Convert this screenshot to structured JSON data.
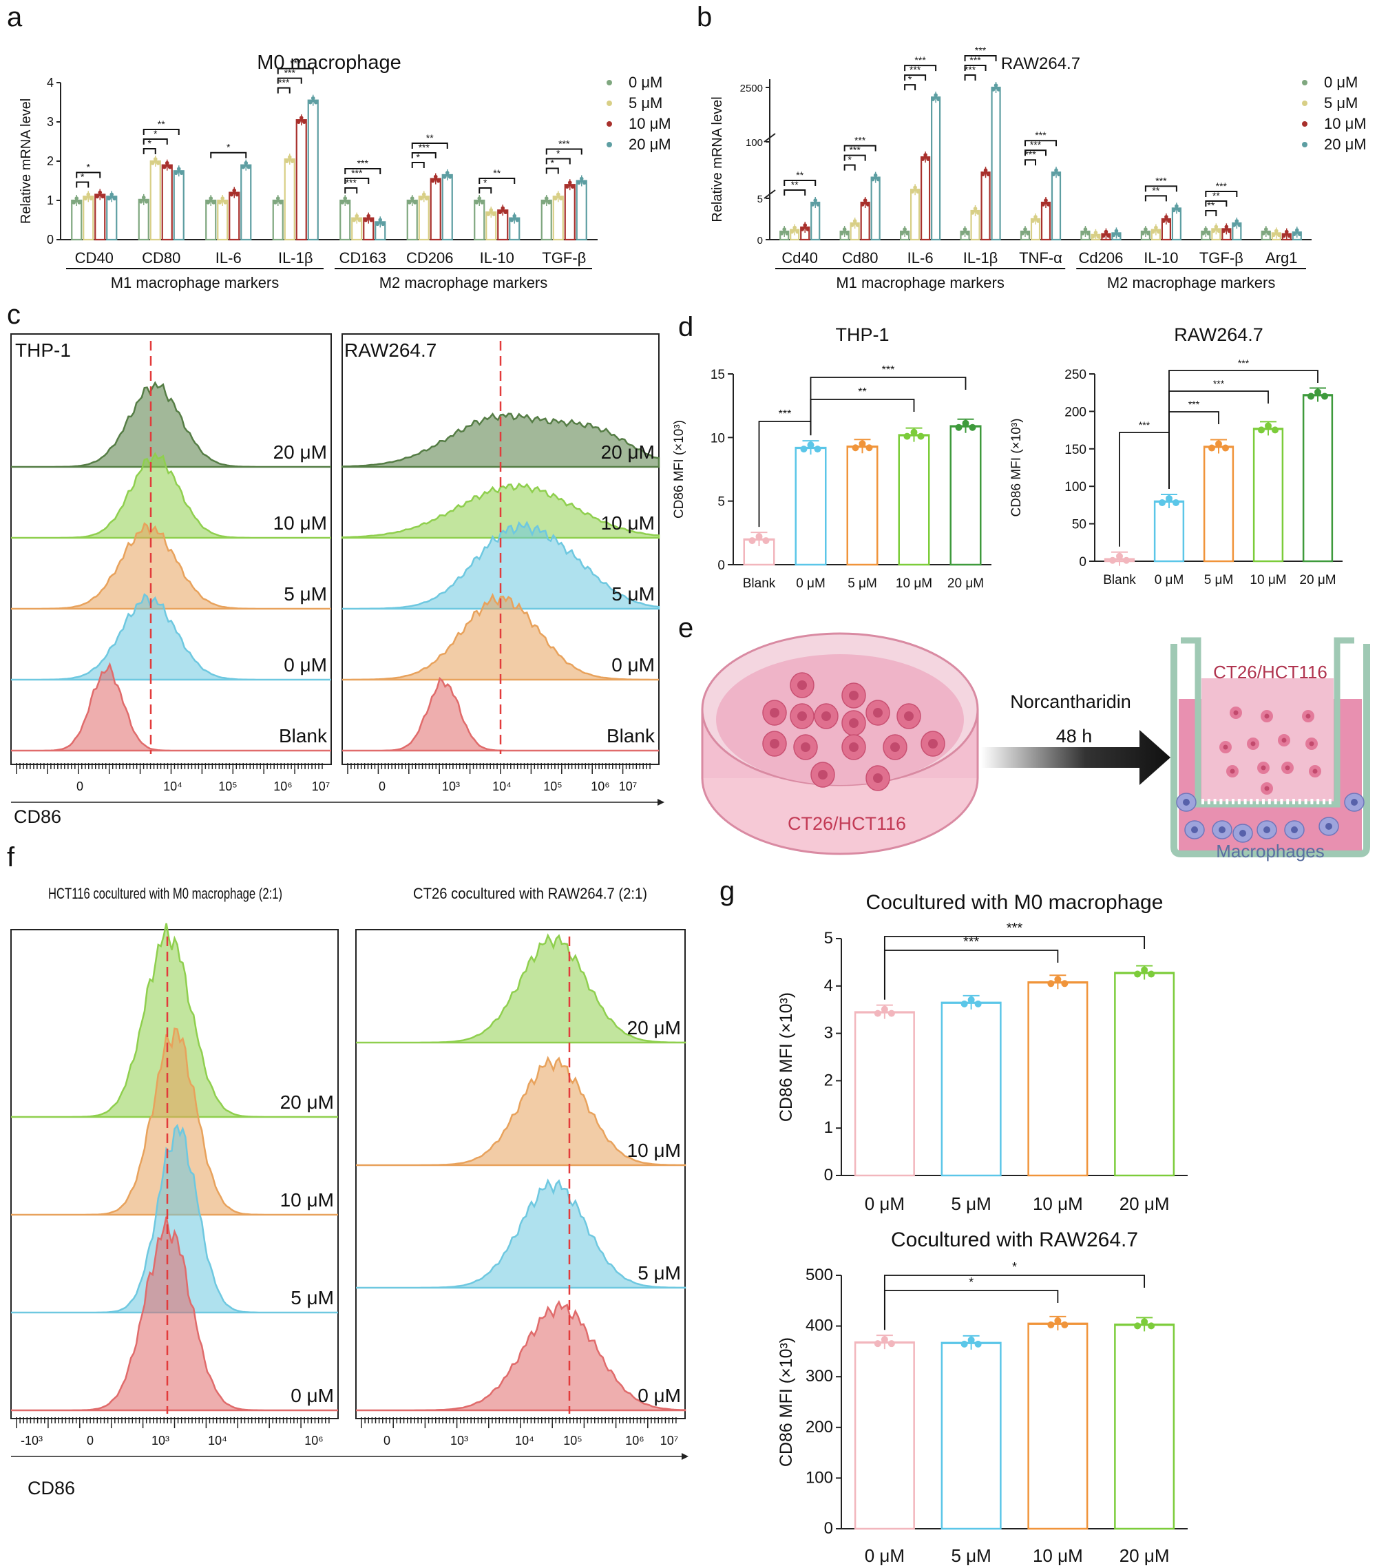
{
  "colors": {
    "c0": "#7fa77f",
    "c5": "#d8cf86",
    "c10": "#a8302c",
    "c20": "#5d9ea2",
    "blank": "#e06b6b",
    "zero": "#6ec8e0",
    "five": "#e8a25c",
    "ten": "#8fcf4e",
    "twenty": "#557d45",
    "barBlank": "#f2b6bd",
    "bar0": "#5bc6e8",
    "bar5": "#f0943a",
    "bar10": "#7ccc3a",
    "bar20": "#3e9a3c"
  },
  "panel_letters": [
    "a",
    "b",
    "c",
    "d",
    "e",
    "f",
    "g"
  ],
  "chart_data": [
    {
      "id": "a",
      "type": "bar",
      "title": "M0 macrophage",
      "ylabel": "Relative mRNA level",
      "ylim": [
        0,
        4
      ],
      "yticks": [
        "0",
        "1",
        "2",
        "3",
        "4"
      ],
      "categories": [
        "CD40",
        "CD80",
        "IL-6",
        "IL-1β",
        "CD163",
        "CD206",
        "IL-10",
        "TGF-β"
      ],
      "groups": [
        {
          "label": "M1 macrophage markers",
          "span": [
            0,
            3
          ]
        },
        {
          "label": "M2 macrophage markers",
          "span": [
            4,
            7
          ]
        }
      ],
      "legend": [
        "0 μM",
        "5 μM",
        "10 μM",
        "20 μM"
      ],
      "legend_position": "right",
      "series": [
        {
          "name": "0 μM",
          "values": [
            1.0,
            1.02,
            1.0,
            1.0,
            1.0,
            1.0,
            1.0,
            1.0
          ]
        },
        {
          "name": "5 μM",
          "values": [
            1.1,
            2.0,
            1.0,
            2.05,
            0.55,
            1.1,
            0.7,
            1.1
          ]
        },
        {
          "name": "10 μM",
          "values": [
            1.15,
            1.9,
            1.2,
            3.05,
            0.55,
            1.55,
            0.75,
            1.4
          ]
        },
        {
          "name": "20 μM",
          "values": [
            1.1,
            1.75,
            1.9,
            3.55,
            0.45,
            1.65,
            0.55,
            1.5
          ]
        }
      ],
      "significance": [
        {
          "cat": 0,
          "from": 0,
          "to": 1,
          "label": "*"
        },
        {
          "cat": 0,
          "from": 0,
          "to": 2,
          "label": "*"
        },
        {
          "cat": 1,
          "from": 0,
          "to": 1,
          "label": "*"
        },
        {
          "cat": 1,
          "from": 0,
          "to": 2,
          "label": "*"
        },
        {
          "cat": 1,
          "from": 0,
          "to": 3,
          "label": "**"
        },
        {
          "cat": 2,
          "from": 0,
          "to": 3,
          "label": "*"
        },
        {
          "cat": 3,
          "from": 0,
          "to": 1,
          "label": "***"
        },
        {
          "cat": 3,
          "from": 0,
          "to": 2,
          "label": "***"
        },
        {
          "cat": 3,
          "from": 0,
          "to": 3,
          "label": "***"
        },
        {
          "cat": 4,
          "from": 0,
          "to": 1,
          "label": "***"
        },
        {
          "cat": 4,
          "from": 0,
          "to": 2,
          "label": "***"
        },
        {
          "cat": 4,
          "from": 0,
          "to": 3,
          "label": "***"
        },
        {
          "cat": 5,
          "from": 0,
          "to": 1,
          "label": "*"
        },
        {
          "cat": 5,
          "from": 0,
          "to": 2,
          "label": "***"
        },
        {
          "cat": 5,
          "from": 0,
          "to": 3,
          "label": "**"
        },
        {
          "cat": 6,
          "from": 0,
          "to": 1,
          "label": "*"
        },
        {
          "cat": 6,
          "from": 0,
          "to": 3,
          "label": "**"
        },
        {
          "cat": 7,
          "from": 0,
          "to": 1,
          "label": "*"
        },
        {
          "cat": 7,
          "from": 0,
          "to": 2,
          "label": "*"
        },
        {
          "cat": 7,
          "from": 0,
          "to": 3,
          "label": "***"
        }
      ]
    },
    {
      "id": "b",
      "type": "bar",
      "title": "RAW264.7",
      "ylabel": "Relative mRNA level",
      "yticks": [
        "0",
        "5",
        "100",
        "2500"
      ],
      "broken_axis": true,
      "categories": [
        "Cd40",
        "Cd80",
        "IL-6",
        "IL-1β",
        "TNF-α",
        "Cd206",
        "IL-10",
        "TGF-β",
        "Arg1"
      ],
      "groups": [
        {
          "label": "M1 macrophage markers",
          "span": [
            0,
            4
          ]
        },
        {
          "label": "M2 macrophage markers",
          "span": [
            5,
            8
          ]
        }
      ],
      "legend": [
        "0 μM",
        "5 μM",
        "10 μM",
        "20 μM"
      ],
      "legend_position": "right",
      "series": [
        {
          "name": "0 μM",
          "values": [
            1,
            1,
            1,
            1,
            1,
            1,
            1,
            1,
            1
          ]
        },
        {
          "name": "5 μM",
          "values": [
            1.2,
            2,
            6,
            3.5,
            2.5,
            0.6,
            1.2,
            1.3,
            0.8
          ]
        },
        {
          "name": "10 μM",
          "values": [
            1.5,
            4.5,
            70,
            40,
            4.5,
            0.7,
            2.5,
            1.3,
            0.7
          ]
        },
        {
          "name": "20 μM",
          "values": [
            4.5,
            30,
            2000,
            2500,
            40,
            0.8,
            3.8,
            2.0,
            0.9
          ]
        }
      ],
      "significance": [
        {
          "cat": 0,
          "from": 0,
          "to": 2,
          "label": "**"
        },
        {
          "cat": 0,
          "from": 0,
          "to": 3,
          "label": "**"
        },
        {
          "cat": 1,
          "from": 0,
          "to": 1,
          "label": "*"
        },
        {
          "cat": 1,
          "from": 0,
          "to": 2,
          "label": "***"
        },
        {
          "cat": 1,
          "from": 0,
          "to": 3,
          "label": "***"
        },
        {
          "cat": 2,
          "from": 0,
          "to": 1,
          "label": "*"
        },
        {
          "cat": 2,
          "from": 0,
          "to": 2,
          "label": "***"
        },
        {
          "cat": 2,
          "from": 0,
          "to": 3,
          "label": "***"
        },
        {
          "cat": 3,
          "from": 0,
          "to": 1,
          "label": "***"
        },
        {
          "cat": 3,
          "from": 0,
          "to": 2,
          "label": "***"
        },
        {
          "cat": 3,
          "from": 0,
          "to": 3,
          "label": "***"
        },
        {
          "cat": 4,
          "from": 0,
          "to": 1,
          "label": "***"
        },
        {
          "cat": 4,
          "from": 0,
          "to": 2,
          "label": "***"
        },
        {
          "cat": 4,
          "from": 0,
          "to": 3,
          "label": "***"
        },
        {
          "cat": 6,
          "from": 0,
          "to": 2,
          "label": "**"
        },
        {
          "cat": 6,
          "from": 0,
          "to": 3,
          "label": "***"
        },
        {
          "cat": 7,
          "from": 0,
          "to": 1,
          "label": "**"
        },
        {
          "cat": 7,
          "from": 0,
          "to": 2,
          "label": "**"
        },
        {
          "cat": 7,
          "from": 0,
          "to": 3,
          "label": "***"
        }
      ]
    },
    {
      "id": "c",
      "type": "area",
      "xlabel": "CD86",
      "panels": [
        {
          "title": "THP-1",
          "rows": [
            "20 μM",
            "10 μM",
            "5 μM",
            "0 μM",
            "Blank"
          ],
          "ticks": [
            "0",
            "10⁴",
            "10⁵",
            "10⁶",
            "10⁷"
          ],
          "peaks": [
            0.45,
            0.45,
            0.43,
            0.42,
            0.28
          ],
          "widths": [
            0.08,
            0.08,
            0.09,
            0.09,
            0.06
          ]
        },
        {
          "title": "RAW264.7",
          "rows": [
            "20 μM",
            "10 μM",
            "5 μM",
            "0 μM",
            "Blank"
          ],
          "ticks": [
            "0",
            "10³",
            "10⁴",
            "10⁵",
            "10⁶",
            "10⁷"
          ],
          "peaks": [
            0.55,
            0.57,
            0.55,
            0.5,
            0.35
          ],
          "widths": [
            0.2,
            0.2,
            0.14,
            0.12,
            0.05
          ]
        }
      ]
    },
    {
      "id": "d1",
      "type": "bar",
      "title": "THP-1",
      "ylabel": "CD86 MFI (×10³)",
      "ylim": [
        0,
        15
      ],
      "yticks": [
        "0",
        "5",
        "10",
        "15"
      ],
      "categories": [
        "Blank",
        "0 μM",
        "5 μM",
        "10 μM",
        "20 μM"
      ],
      "values": [
        2.0,
        9.2,
        9.3,
        10.2,
        10.9
      ],
      "significance": [
        {
          "from": 0,
          "to": 1,
          "label": "***"
        },
        {
          "from": 1,
          "to": 3,
          "label": "**"
        },
        {
          "from": 1,
          "to": 4,
          "label": "***"
        }
      ]
    },
    {
      "id": "d2",
      "type": "bar",
      "title": "RAW264.7",
      "ylabel": "CD86 MFI (×10³)",
      "ylim": [
        0,
        250
      ],
      "yticks": [
        "0",
        "50",
        "100",
        "150",
        "200",
        "250"
      ],
      "categories": [
        "Blank",
        "0 μM",
        "5 μM",
        "10 μM",
        "20 μM"
      ],
      "values": [
        3,
        80,
        153,
        177,
        222
      ],
      "significance": [
        {
          "from": 0,
          "to": 1,
          "label": "***"
        },
        {
          "from": 1,
          "to": 2,
          "label": "***"
        },
        {
          "from": 1,
          "to": 3,
          "label": "***"
        },
        {
          "from": 1,
          "to": 4,
          "label": "***"
        }
      ]
    },
    {
      "id": "f",
      "type": "area",
      "xlabel": "CD86",
      "panels": [
        {
          "title": "HCT116 cocultured with M0 macrophage (2:1)",
          "rows": [
            "20 μM",
            "10 μM",
            "5 μM",
            "0 μM"
          ],
          "ticks": [
            "-10³",
            "0",
            "10³",
            "10⁴",
            "10⁶"
          ]
        },
        {
          "title": "CT26 cocultured with RAW264.7 (2:1)",
          "rows": [
            "20 μM",
            "10 μM",
            "5 μM",
            "0 μM"
          ],
          "ticks": [
            "0",
            "10³",
            "10⁴",
            "10⁵",
            "10⁶",
            "10⁷"
          ]
        }
      ]
    },
    {
      "id": "g1",
      "type": "bar",
      "title": "Cocultured with M0 macrophage",
      "ylabel": "CD86 MFI (×10³)",
      "ylim": [
        0,
        5
      ],
      "yticks": [
        "0",
        "1",
        "2",
        "3",
        "4",
        "5"
      ],
      "categories": [
        "0 μM",
        "5 μM",
        "10 μM",
        "20 μM"
      ],
      "values": [
        3.45,
        3.65,
        4.08,
        4.28
      ],
      "significance": [
        {
          "from": 0,
          "to": 2,
          "label": "***"
        },
        {
          "from": 0,
          "to": 3,
          "label": "***"
        }
      ]
    },
    {
      "id": "g2",
      "type": "bar",
      "title": "Cocultured with RAW264.7",
      "ylabel": "CD86 MFI (×10³)",
      "ylim": [
        0,
        500
      ],
      "yticks": [
        "0",
        "100",
        "200",
        "300",
        "400",
        "500"
      ],
      "categories": [
        "0 μM",
        "5 μM",
        "10 μM",
        "20 μM"
      ],
      "values": [
        368,
        367,
        405,
        403
      ],
      "significance": [
        {
          "from": 0,
          "to": 2,
          "label": "*"
        },
        {
          "from": 0,
          "to": 3,
          "label": "*"
        }
      ]
    }
  ],
  "schematic": {
    "dish_label": "CT26/HCT116",
    "arrow_top": "Norcantharidin",
    "arrow_bottom": "48 h",
    "insert_label": "CT26/HCT116",
    "well_label": "Macrophages"
  }
}
